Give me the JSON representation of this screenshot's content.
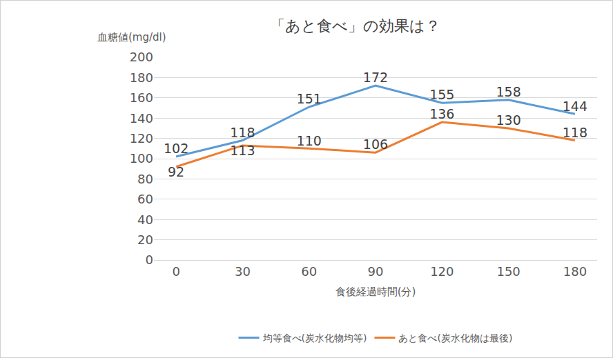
{
  "chart_data": {
    "type": "line",
    "title": "「あと食べ」の効果は？",
    "x_label": "食後経過時間(分)",
    "y_label": "血糖値(mg/dl)",
    "categories": [
      "0",
      "30",
      "60",
      "90",
      "120",
      "150",
      "180"
    ],
    "series": [
      {
        "name": "均等食べ(炭水化物均等)",
        "color": "#5b9bd5",
        "values": [
          102,
          118,
          151,
          172,
          155,
          158,
          144
        ]
      },
      {
        "name": "あと食べ(炭水化物は最後)",
        "color": "#ed7d31",
        "values": [
          92,
          113,
          110,
          106,
          136,
          130,
          118
        ]
      }
    ],
    "ylim": [
      0,
      200
    ],
    "yticks": [
      0,
      20,
      40,
      60,
      80,
      100,
      120,
      140,
      160,
      180,
      200
    ],
    "grid": true,
    "legend": "bottom",
    "data_labels": true
  }
}
